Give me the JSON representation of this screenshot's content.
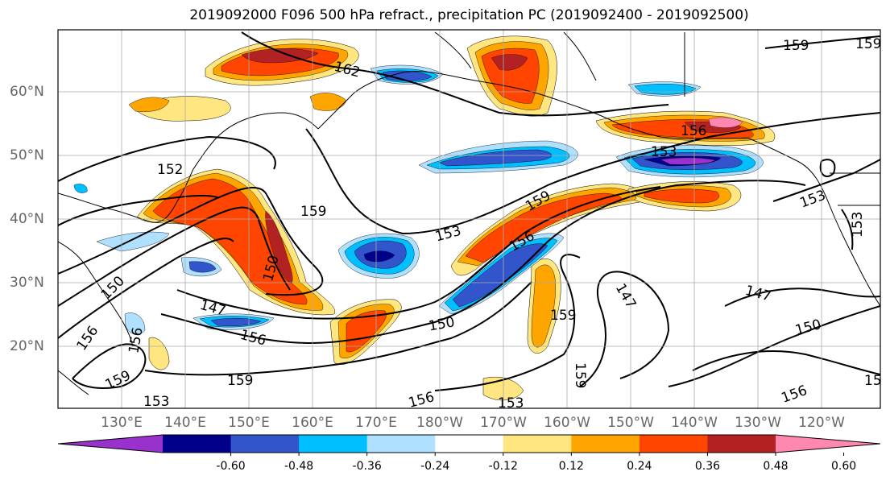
{
  "title": "2019092000 F096 500 hPa refract., precipitation PC (2019092400 - 2019092500)",
  "lat_labels": [
    "60°N",
    "50°N",
    "40°N",
    "30°N",
    "20°N"
  ],
  "lon_labels": [
    "130°E",
    "140°E",
    "150°E",
    "160°E",
    "170°E",
    "180°W",
    "170°W",
    "160°W",
    "150°W",
    "140°W",
    "130°W",
    "120°W"
  ],
  "contour_labels": [
    "162",
    "159",
    "159",
    "156",
    "153",
    "152",
    "159",
    "153",
    "156",
    "159",
    "153",
    "150",
    "150",
    "147",
    "156",
    "150",
    "159",
    "147",
    "147",
    "150",
    "156",
    "156",
    "159",
    "153",
    "153",
    "156",
    "159",
    "156",
    "153",
    "15"
  ],
  "colorbar": {
    "ticks": [
      "-0.60",
      "-0.48",
      "-0.36",
      "-0.24",
      "-0.12",
      "0.12",
      "0.24",
      "0.36",
      "0.48",
      "0.60"
    ],
    "colors": [
      "#9932cc",
      "#00008b",
      "#3355cc",
      "#00bfff",
      "#b0e0ff",
      "#ffffff",
      "#ffe680",
      "#ffa500",
      "#ff4500",
      "#b22222",
      "#ff88b0"
    ]
  },
  "palette": {
    "neg_strong": "#3355cc",
    "neg_mid": "#00bfff",
    "neg_light": "#b0e0ff",
    "neg_deep": "#00008b",
    "neg_purple": "#9932cc",
    "pos_light": "#ffe680",
    "pos_mid": "#ffa500",
    "pos_strong": "#ff4500",
    "pos_deep": "#b22222",
    "pos_pink": "#ff88b0"
  }
}
